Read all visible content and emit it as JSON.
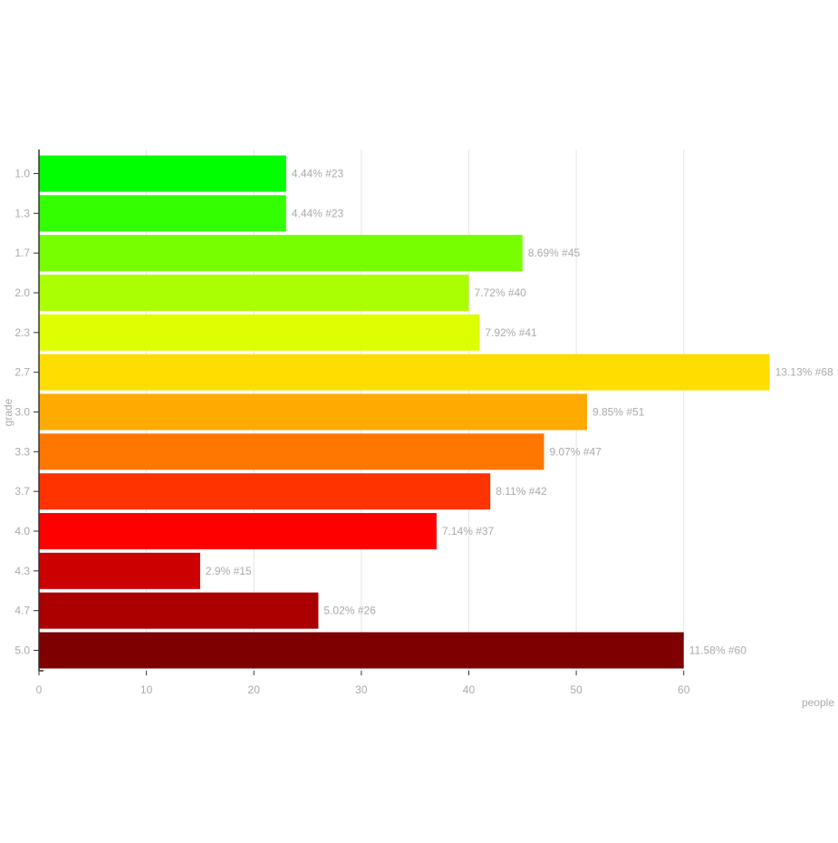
{
  "chart_data": {
    "type": "bar",
    "orientation": "horizontal",
    "xlabel": "people",
    "ylabel": "grade",
    "xlim": [
      0,
      68
    ],
    "x_ticks": [
      0,
      10,
      20,
      30,
      40,
      50,
      60
    ],
    "grid": "vertical",
    "categories": [
      "1.0",
      "1.3",
      "1.7",
      "2.0",
      "2.3",
      "2.7",
      "3.0",
      "3.3",
      "3.7",
      "4.0",
      "4.3",
      "4.7",
      "5.0"
    ],
    "values": [
      23,
      23,
      45,
      40,
      41,
      68,
      51,
      47,
      42,
      37,
      15,
      26,
      60
    ],
    "data_labels": [
      "4.44% #23",
      "4.44% #23",
      "8.69% #45",
      "7.72% #40",
      "7.92% #41",
      "13.13% #68",
      "9.85% #51",
      "9.07% #47",
      "8.11% #42",
      "7.14% #37",
      "2.9% #15",
      "5.02% #26",
      "11.58% #60"
    ],
    "colors": [
      "#00ff00",
      "#33ff00",
      "#77ff00",
      "#aaff00",
      "#ddff00",
      "#ffdd00",
      "#ffaa00",
      "#ff7700",
      "#ff3300",
      "#ff0000",
      "#cc0000",
      "#aa0000",
      "#7f0000"
    ]
  }
}
